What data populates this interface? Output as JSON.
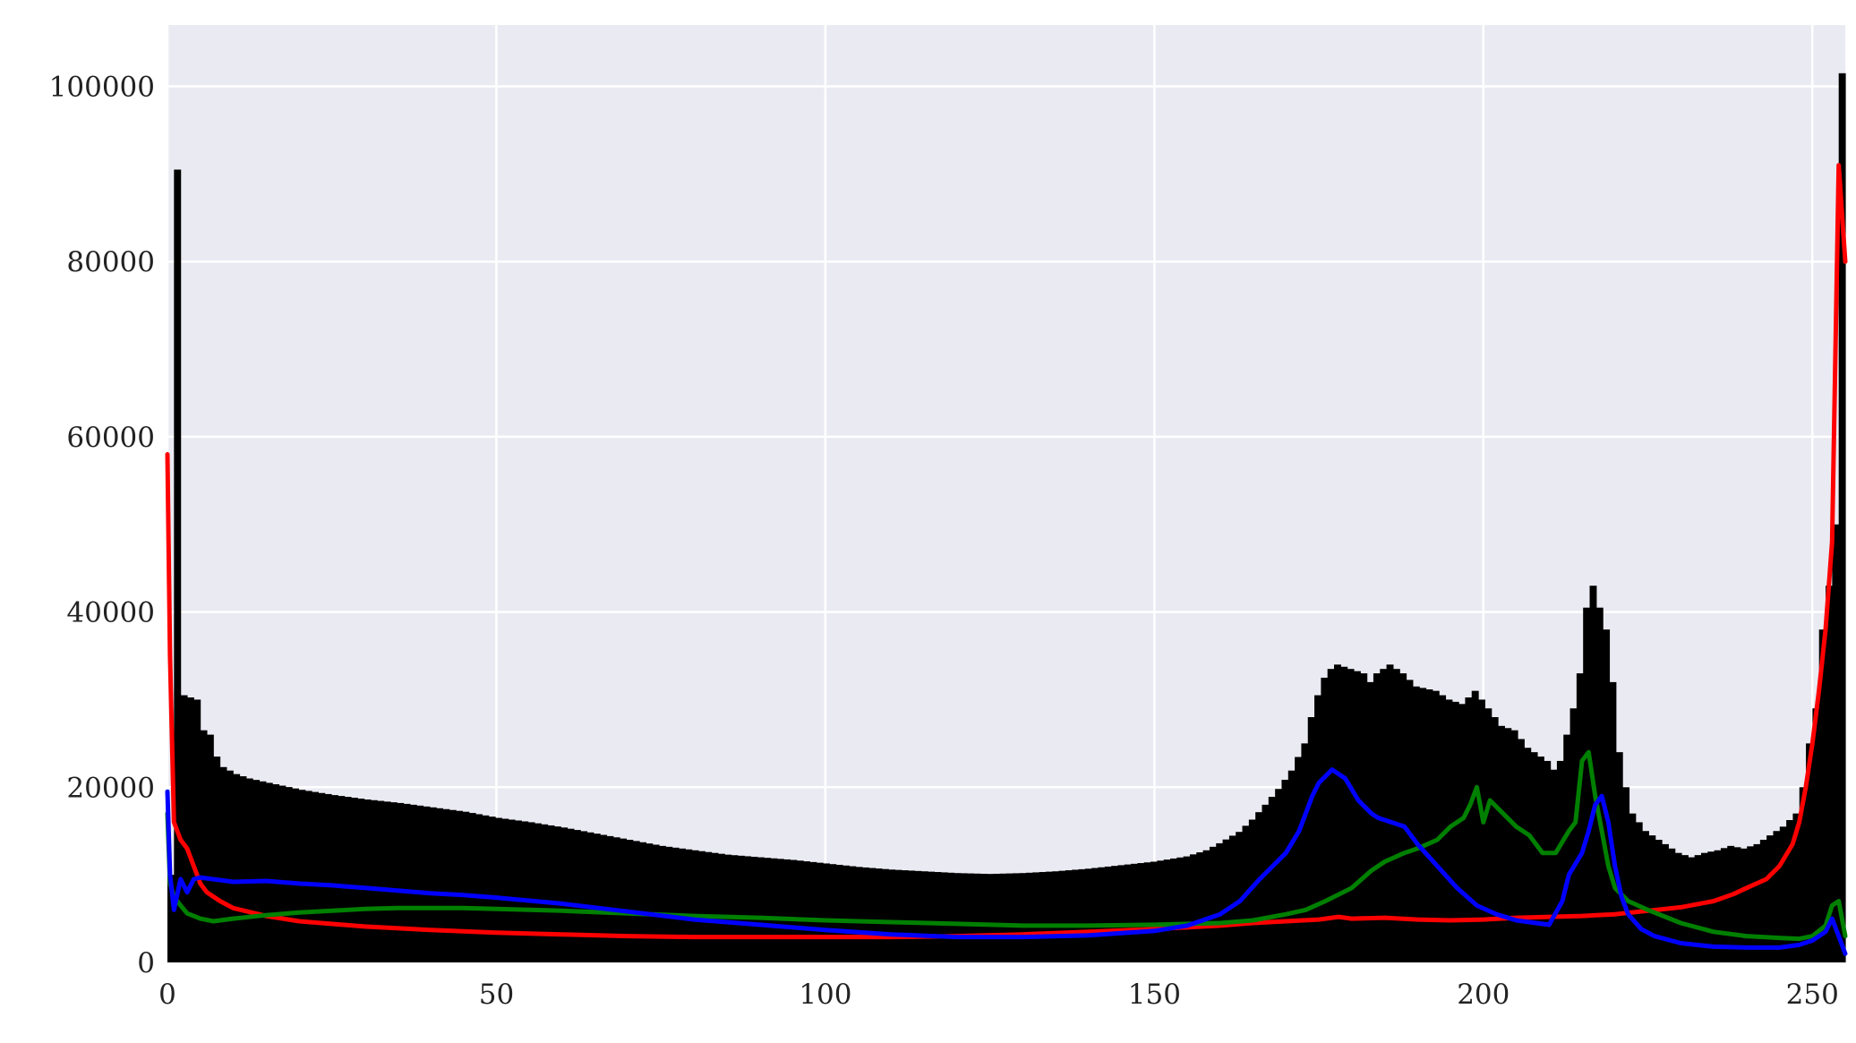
{
  "chart_data": {
    "type": "bar",
    "title": "",
    "xlabel": "",
    "ylabel": "",
    "xlim": [
      0,
      255
    ],
    "ylim": [
      0,
      107000
    ],
    "xticks": [
      "0",
      "50",
      "100",
      "150",
      "200",
      "250"
    ],
    "yticks": [
      "0",
      "20000",
      "40000",
      "60000",
      "80000",
      "100000"
    ],
    "grid": true,
    "legend": "none",
    "background_color": "#eaeaf2",
    "grid_color": "#ffffff",
    "histogram": {
      "name": "",
      "color": "#000000",
      "keypoints": [
        [
          0,
          10000
        ],
        [
          1,
          90500
        ],
        [
          2,
          30500
        ],
        [
          4,
          30000
        ],
        [
          5,
          26500
        ],
        [
          6,
          26000
        ],
        [
          7,
          23500
        ],
        [
          8,
          22300
        ],
        [
          10,
          21500
        ],
        [
          12,
          21000
        ],
        [
          15,
          20500
        ],
        [
          20,
          19700
        ],
        [
          25,
          19100
        ],
        [
          30,
          18600
        ],
        [
          35,
          18200
        ],
        [
          40,
          17700
        ],
        [
          45,
          17200
        ],
        [
          50,
          16500
        ],
        [
          55,
          16000
        ],
        [
          60,
          15400
        ],
        [
          65,
          14700
        ],
        [
          70,
          14000
        ],
        [
          75,
          13300
        ],
        [
          80,
          12800
        ],
        [
          85,
          12300
        ],
        [
          90,
          12000
        ],
        [
          95,
          11700
        ],
        [
          100,
          11300
        ],
        [
          105,
          10900
        ],
        [
          110,
          10600
        ],
        [
          115,
          10400
        ],
        [
          120,
          10200
        ],
        [
          125,
          10100
        ],
        [
          130,
          10200
        ],
        [
          135,
          10400
        ],
        [
          140,
          10700
        ],
        [
          145,
          11100
        ],
        [
          150,
          11500
        ],
        [
          155,
          12100
        ],
        [
          158,
          12800
        ],
        [
          160,
          13600
        ],
        [
          163,
          14900
        ],
        [
          165,
          16300
        ],
        [
          167,
          18000
        ],
        [
          169,
          19800
        ],
        [
          171,
          21900
        ],
        [
          173,
          25000
        ],
        [
          174,
          28000
        ],
        [
          175,
          30500
        ],
        [
          176,
          32500
        ],
        [
          177,
          33500
        ],
        [
          178,
          34000
        ],
        [
          180,
          33500
        ],
        [
          182,
          33000
        ],
        [
          183,
          32000
        ],
        [
          184,
          33000
        ],
        [
          186,
          34000
        ],
        [
          188,
          33000
        ],
        [
          190,
          31500
        ],
        [
          193,
          31000
        ],
        [
          195,
          30000
        ],
        [
          197,
          29500
        ],
        [
          199,
          31000
        ],
        [
          201,
          29000
        ],
        [
          203,
          27000
        ],
        [
          205,
          26500
        ],
        [
          207,
          24500
        ],
        [
          209,
          23500
        ],
        [
          210,
          23000
        ],
        [
          211,
          22000
        ],
        [
          212,
          23000
        ],
        [
          213,
          26000
        ],
        [
          214,
          29000
        ],
        [
          215,
          33000
        ],
        [
          216,
          40500
        ],
        [
          217,
          43000
        ],
        [
          218,
          40500
        ],
        [
          219,
          38000
        ],
        [
          220,
          32000
        ],
        [
          221,
          24000
        ],
        [
          222,
          20000
        ],
        [
          223,
          17000
        ],
        [
          225,
          15000
        ],
        [
          228,
          13500
        ],
        [
          230,
          12500
        ],
        [
          232,
          12000
        ],
        [
          234,
          12500
        ],
        [
          236,
          12800
        ],
        [
          238,
          13300
        ],
        [
          240,
          13000
        ],
        [
          242,
          13500
        ],
        [
          244,
          14500
        ],
        [
          246,
          15500
        ],
        [
          248,
          17000
        ],
        [
          249,
          20000
        ],
        [
          250,
          25000
        ],
        [
          251,
          29000
        ],
        [
          252,
          38000
        ],
        [
          253,
          43000
        ],
        [
          254,
          50000
        ],
        [
          255,
          101500
        ]
      ]
    },
    "series": [
      {
        "name": "",
        "color": "#ff0000",
        "points": [
          [
            0,
            58000
          ],
          [
            0.4,
            35000
          ],
          [
            1,
            16000
          ],
          [
            2,
            14000
          ],
          [
            3,
            13000
          ],
          [
            4,
            11000
          ],
          [
            5,
            9000
          ],
          [
            6,
            8000
          ],
          [
            8,
            7000
          ],
          [
            10,
            6200
          ],
          [
            15,
            5300
          ],
          [
            20,
            4700
          ],
          [
            30,
            4100
          ],
          [
            40,
            3700
          ],
          [
            50,
            3400
          ],
          [
            60,
            3200
          ],
          [
            70,
            3000
          ],
          [
            80,
            2900
          ],
          [
            90,
            2900
          ],
          [
            100,
            2900
          ],
          [
            110,
            2900
          ],
          [
            120,
            3000
          ],
          [
            130,
            3200
          ],
          [
            140,
            3500
          ],
          [
            150,
            3800
          ],
          [
            160,
            4200
          ],
          [
            165,
            4500
          ],
          [
            170,
            4700
          ],
          [
            175,
            4900
          ],
          [
            178,
            5200
          ],
          [
            180,
            5000
          ],
          [
            185,
            5100
          ],
          [
            190,
            4900
          ],
          [
            195,
            4800
          ],
          [
            200,
            4900
          ],
          [
            205,
            5100
          ],
          [
            210,
            5200
          ],
          [
            215,
            5300
          ],
          [
            220,
            5500
          ],
          [
            225,
            5900
          ],
          [
            230,
            6300
          ],
          [
            235,
            7000
          ],
          [
            238,
            7800
          ],
          [
            240,
            8500
          ],
          [
            243,
            9500
          ],
          [
            245,
            11000
          ],
          [
            247,
            13500
          ],
          [
            248,
            16000
          ],
          [
            249,
            20000
          ],
          [
            250,
            25000
          ],
          [
            251,
            31000
          ],
          [
            252,
            38000
          ],
          [
            253,
            48000
          ],
          [
            254,
            91000
          ],
          [
            255,
            80000
          ]
        ]
      },
      {
        "name": "",
        "color": "#008000",
        "points": [
          [
            0,
            17000
          ],
          [
            0.4,
            9000
          ],
          [
            1,
            7500
          ],
          [
            2,
            6500
          ],
          [
            3,
            5600
          ],
          [
            5,
            5000
          ],
          [
            7,
            4700
          ],
          [
            10,
            5000
          ],
          [
            15,
            5400
          ],
          [
            20,
            5700
          ],
          [
            25,
            5900
          ],
          [
            30,
            6100
          ],
          [
            35,
            6200
          ],
          [
            40,
            6200
          ],
          [
            45,
            6200
          ],
          [
            50,
            6100
          ],
          [
            60,
            5900
          ],
          [
            70,
            5600
          ],
          [
            80,
            5300
          ],
          [
            90,
            5100
          ],
          [
            100,
            4800
          ],
          [
            110,
            4600
          ],
          [
            120,
            4400
          ],
          [
            130,
            4200
          ],
          [
            140,
            4200
          ],
          [
            150,
            4300
          ],
          [
            160,
            4500
          ],
          [
            165,
            4800
          ],
          [
            170,
            5500
          ],
          [
            173,
            6000
          ],
          [
            176,
            7000
          ],
          [
            180,
            8500
          ],
          [
            183,
            10500
          ],
          [
            185,
            11500
          ],
          [
            188,
            12500
          ],
          [
            190,
            13000
          ],
          [
            193,
            14000
          ],
          [
            195,
            15500
          ],
          [
            197,
            16500
          ],
          [
            198,
            18000
          ],
          [
            199,
            20000
          ],
          [
            200,
            16000
          ],
          [
            201,
            18500
          ],
          [
            203,
            17000
          ],
          [
            205,
            15500
          ],
          [
            207,
            14500
          ],
          [
            209,
            12500
          ],
          [
            211,
            12500
          ],
          [
            213,
            15000
          ],
          [
            214,
            16000
          ],
          [
            215,
            23000
          ],
          [
            216,
            24000
          ],
          [
            217,
            19000
          ],
          [
            218,
            15000
          ],
          [
            219,
            11000
          ],
          [
            220,
            8500
          ],
          [
            222,
            7000
          ],
          [
            225,
            6000
          ],
          [
            230,
            4500
          ],
          [
            235,
            3500
          ],
          [
            240,
            3000
          ],
          [
            245,
            2800
          ],
          [
            248,
            2700
          ],
          [
            250,
            3000
          ],
          [
            252,
            4200
          ],
          [
            253,
            6500
          ],
          [
            254,
            7000
          ],
          [
            255,
            3000
          ]
        ]
      },
      {
        "name": "",
        "color": "#0000ff",
        "points": [
          [
            0,
            19500
          ],
          [
            0.4,
            10000
          ],
          [
            1,
            6000
          ],
          [
            2,
            9500
          ],
          [
            3,
            8000
          ],
          [
            4,
            9500
          ],
          [
            5,
            9700
          ],
          [
            10,
            9200
          ],
          [
            15,
            9300
          ],
          [
            20,
            9000
          ],
          [
            25,
            8800
          ],
          [
            30,
            8500
          ],
          [
            35,
            8200
          ],
          [
            40,
            7900
          ],
          [
            45,
            7700
          ],
          [
            50,
            7400
          ],
          [
            60,
            6700
          ],
          [
            70,
            5800
          ],
          [
            80,
            4900
          ],
          [
            90,
            4300
          ],
          [
            100,
            3700
          ],
          [
            110,
            3200
          ],
          [
            120,
            2900
          ],
          [
            130,
            2900
          ],
          [
            140,
            3100
          ],
          [
            150,
            3600
          ],
          [
            155,
            4200
          ],
          [
            160,
            5500
          ],
          [
            163,
            7000
          ],
          [
            166,
            9500
          ],
          [
            168,
            11000
          ],
          [
            170,
            12500
          ],
          [
            172,
            15000
          ],
          [
            174,
            19000
          ],
          [
            175,
            20500
          ],
          [
            177,
            22000
          ],
          [
            179,
            21000
          ],
          [
            181,
            18500
          ],
          [
            183,
            17000
          ],
          [
            184,
            16500
          ],
          [
            186,
            16000
          ],
          [
            188,
            15500
          ],
          [
            190,
            13500
          ],
          [
            193,
            11000
          ],
          [
            196,
            8500
          ],
          [
            199,
            6500
          ],
          [
            202,
            5500
          ],
          [
            205,
            4800
          ],
          [
            208,
            4500
          ],
          [
            210,
            4300
          ],
          [
            212,
            7000
          ],
          [
            213,
            10000
          ],
          [
            215,
            12500
          ],
          [
            216,
            15000
          ],
          [
            217,
            18000
          ],
          [
            218,
            19000
          ],
          [
            219,
            16000
          ],
          [
            220,
            11000
          ],
          [
            221,
            7500
          ],
          [
            222,
            5500
          ],
          [
            224,
            3800
          ],
          [
            226,
            3000
          ],
          [
            230,
            2200
          ],
          [
            235,
            1800
          ],
          [
            240,
            1700
          ],
          [
            245,
            1700
          ],
          [
            248,
            2000
          ],
          [
            250,
            2500
          ],
          [
            252,
            3500
          ],
          [
            253,
            5000
          ],
          [
            254,
            3000
          ],
          [
            255,
            1000
          ]
        ]
      }
    ]
  }
}
